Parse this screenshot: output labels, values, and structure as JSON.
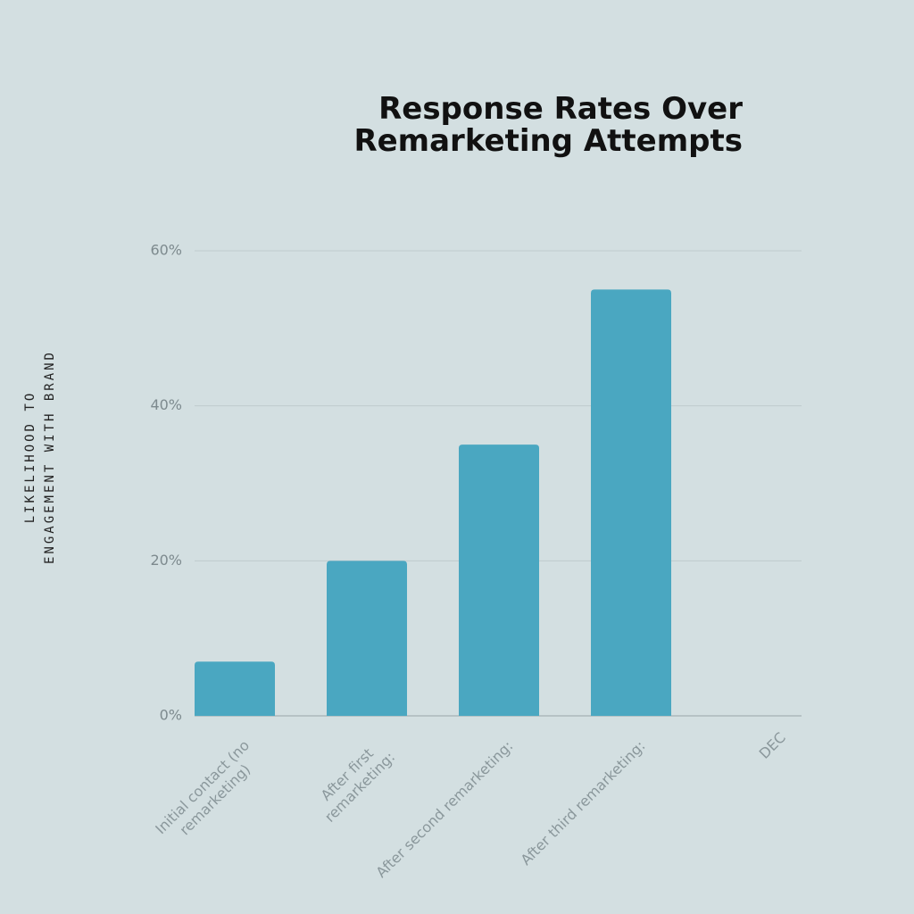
{
  "chart_data": {
    "type": "bar",
    "title": "Response Rates Over Remarketing Attempts",
    "ylabel": "LIKELIHOOD TO ENGAGEMENT WITH BRAND",
    "categories": [
      "Initial contact (no remarketing)",
      "After first remarketing:",
      "After second remarketing:",
      "After third remarketing:",
      "DEC"
    ],
    "values": [
      7,
      20,
      35,
      55,
      null
    ],
    "color": "#4aa7c1",
    "ylim": [
      0,
      60
    ],
    "yticks": [
      {
        "value": 0,
        "label": "0%"
      },
      {
        "value": 20,
        "label": "20%"
      },
      {
        "value": 40,
        "label": "40%"
      },
      {
        "value": 60,
        "label": "60%"
      }
    ],
    "grid": true
  }
}
